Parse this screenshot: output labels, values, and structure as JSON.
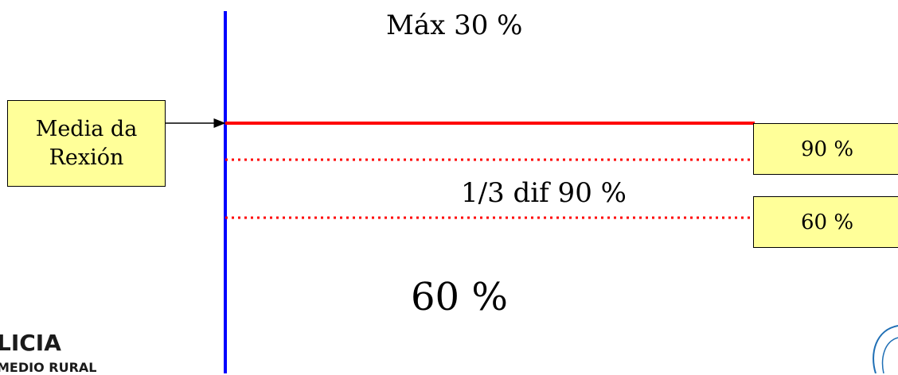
{
  "labels": {
    "max": "Máx 30 %",
    "third_diff": "1/3 dif 90 %",
    "bottom": "60 %"
  },
  "boxes": {
    "region_average": "Media da Rexión",
    "level_90": "90 %",
    "level_60": "60 %"
  },
  "logo": {
    "line1": "LICIA",
    "line2": "MEDIO RURAL"
  },
  "colors": {
    "axis": "#0000ff",
    "threshold": "#ff0000",
    "box_fill": "#ffff99",
    "logo_accent": "#1f6fb5"
  }
}
